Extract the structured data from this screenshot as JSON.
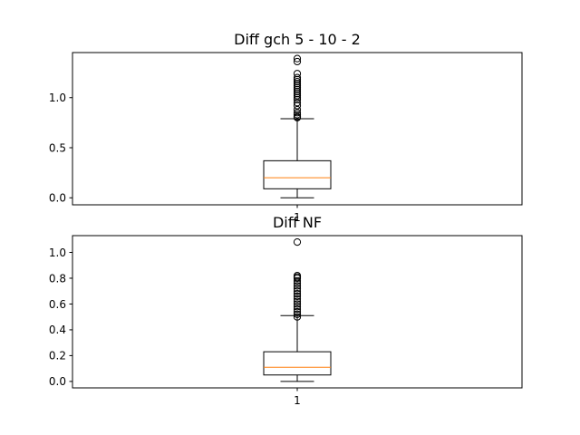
{
  "chart_data": [
    {
      "type": "box",
      "title": "Diff gch 5 - 10 - 2",
      "xlabel": "",
      "ylabel": "",
      "categories": [
        "1"
      ],
      "yticks": [
        "0.0",
        "0.5",
        "1.0"
      ],
      "ylim": [
        -0.07,
        1.45
      ],
      "grid": false,
      "box": {
        "whisker_low": 0.0,
        "q1": 0.09,
        "median": 0.2,
        "q3": 0.37,
        "whisker_high": 0.79,
        "outliers": [
          0.8,
          0.81,
          0.83,
          0.85,
          0.88,
          0.92,
          0.95,
          0.98,
          1.0,
          1.02,
          1.04,
          1.06,
          1.08,
          1.1,
          1.12,
          1.14,
          1.16,
          1.18,
          1.2,
          1.24,
          1.36,
          1.39
        ]
      },
      "colors": {
        "box": "#000000",
        "median": "#ff7f0e"
      }
    },
    {
      "type": "box",
      "title": "Diff NF",
      "xlabel": "",
      "ylabel": "",
      "categories": [
        "1"
      ],
      "yticks": [
        "0.0",
        "0.2",
        "0.4",
        "0.6",
        "0.8",
        "1.0"
      ],
      "ylim": [
        -0.05,
        1.13
      ],
      "grid": false,
      "box": {
        "whisker_low": 0.0,
        "q1": 0.05,
        "median": 0.11,
        "q3": 0.23,
        "whisker_high": 0.51,
        "outliers": [
          0.5,
          0.52,
          0.54,
          0.56,
          0.58,
          0.6,
          0.62,
          0.64,
          0.66,
          0.68,
          0.7,
          0.72,
          0.74,
          0.76,
          0.78,
          0.8,
          0.81,
          0.82,
          1.08
        ]
      },
      "colors": {
        "box": "#000000",
        "median": "#ff7f0e"
      }
    }
  ]
}
